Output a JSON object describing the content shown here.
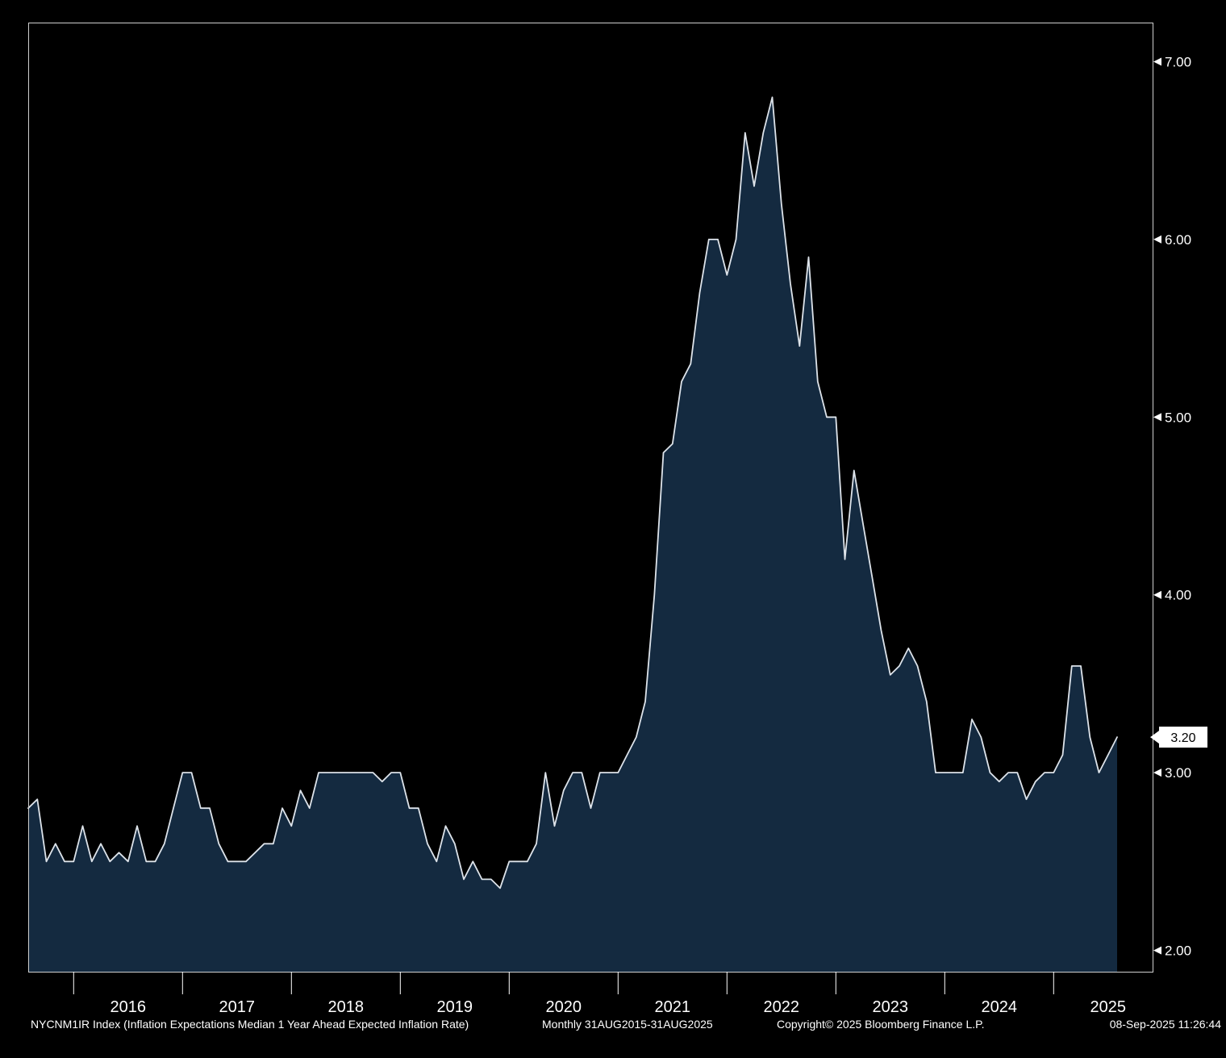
{
  "chart_data": {
    "type": "area",
    "title": "NYCNM1IR Index - Inflation Expectations Median 1 Year Ahead Expected Inflation Rate",
    "frequency": "Monthly",
    "range": "31AUG2015-31AUG2025",
    "x": [
      "2015-08",
      "2015-09",
      "2015-10",
      "2015-11",
      "2015-12",
      "2016-01",
      "2016-02",
      "2016-03",
      "2016-04",
      "2016-05",
      "2016-06",
      "2016-07",
      "2016-08",
      "2016-09",
      "2016-10",
      "2016-11",
      "2016-12",
      "2017-01",
      "2017-02",
      "2017-03",
      "2017-04",
      "2017-05",
      "2017-06",
      "2017-07",
      "2017-08",
      "2017-09",
      "2017-10",
      "2017-11",
      "2017-12",
      "2018-01",
      "2018-02",
      "2018-03",
      "2018-04",
      "2018-05",
      "2018-06",
      "2018-07",
      "2018-08",
      "2018-09",
      "2018-10",
      "2018-11",
      "2018-12",
      "2019-01",
      "2019-02",
      "2019-03",
      "2019-04",
      "2019-05",
      "2019-06",
      "2019-07",
      "2019-08",
      "2019-09",
      "2019-10",
      "2019-11",
      "2019-12",
      "2020-01",
      "2020-02",
      "2020-03",
      "2020-04",
      "2020-05",
      "2020-06",
      "2020-07",
      "2020-08",
      "2020-09",
      "2020-10",
      "2020-11",
      "2020-12",
      "2021-01",
      "2021-02",
      "2021-03",
      "2021-04",
      "2021-05",
      "2021-06",
      "2021-07",
      "2021-08",
      "2021-09",
      "2021-10",
      "2021-11",
      "2021-12",
      "2022-01",
      "2022-02",
      "2022-03",
      "2022-04",
      "2022-05",
      "2022-06",
      "2022-07",
      "2022-08",
      "2022-09",
      "2022-10",
      "2022-11",
      "2022-12",
      "2023-01",
      "2023-02",
      "2023-03",
      "2023-04",
      "2023-05",
      "2023-06",
      "2023-07",
      "2023-08",
      "2023-09",
      "2023-10",
      "2023-11",
      "2023-12",
      "2024-01",
      "2024-02",
      "2024-03",
      "2024-04",
      "2024-05",
      "2024-06",
      "2024-07",
      "2024-08",
      "2024-09",
      "2024-10",
      "2024-11",
      "2024-12",
      "2025-01",
      "2025-02",
      "2025-03",
      "2025-04",
      "2025-05",
      "2025-06",
      "2025-07",
      "2025-08"
    ],
    "values": [
      2.8,
      2.85,
      2.5,
      2.6,
      2.5,
      2.5,
      2.7,
      2.5,
      2.6,
      2.5,
      2.55,
      2.5,
      2.7,
      2.5,
      2.5,
      2.6,
      2.8,
      3.0,
      3.0,
      2.8,
      2.8,
      2.6,
      2.5,
      2.5,
      2.5,
      2.55,
      2.6,
      2.6,
      2.8,
      2.7,
      2.9,
      2.8,
      3.0,
      3.0,
      3.0,
      3.0,
      3.0,
      3.0,
      3.0,
      2.95,
      3.0,
      3.0,
      2.8,
      2.8,
      2.6,
      2.5,
      2.7,
      2.6,
      2.4,
      2.5,
      2.4,
      2.4,
      2.35,
      2.5,
      2.5,
      2.5,
      2.6,
      3.0,
      2.7,
      2.9,
      3.0,
      3.0,
      2.8,
      3.0,
      3.0,
      3.0,
      3.1,
      3.2,
      3.4,
      4.0,
      4.8,
      4.85,
      5.2,
      5.3,
      5.7,
      6.0,
      6.0,
      5.8,
      6.0,
      6.6,
      6.3,
      6.6,
      6.8,
      6.2,
      5.75,
      5.4,
      5.9,
      5.2,
      5.0,
      5.0,
      4.2,
      4.7,
      4.4,
      4.1,
      3.8,
      3.55,
      3.6,
      3.7,
      3.6,
      3.4,
      3.0,
      3.0,
      3.0,
      3.0,
      3.3,
      3.2,
      3.0,
      2.95,
      3.0,
      3.0,
      2.85,
      2.95,
      3.0,
      3.0,
      3.1,
      3.6,
      3.6,
      3.2,
      3.0,
      3.1,
      3.2
    ],
    "ylim": [
      1.88,
      7.22
    ],
    "y_axis": {
      "side": "right",
      "values": [
        2,
        3,
        4,
        5,
        6,
        7
      ],
      "ticks": [
        "2.00",
        "3.00",
        "4.00",
        "5.00",
        "6.00",
        "7.00"
      ]
    },
    "x_axis": {
      "year_labels": [
        "2016",
        "2017",
        "2018",
        "2019",
        "2020",
        "2021",
        "2022",
        "2023",
        "2024",
        "2025"
      ]
    },
    "grid": false,
    "legend_position": "none",
    "last_value": 3.2,
    "last_value_label": "3.20",
    "colors": {
      "background": "#000000",
      "area_fill": "#142a40",
      "line": "#dde3ea",
      "plot_border": "#cfcfcf",
      "axis_text": "#ffffff",
      "tick": "#ffffff",
      "last_value_bg": "#ffffff",
      "last_value_text": "#000000"
    }
  },
  "footer": {
    "security_description": "NYCNM1IR Index (Inflation Expectations Median 1 Year Ahead Expected Inflation Rate)",
    "periodicity_range": "Monthly 31AUG2015-31AUG2025",
    "copyright": "Copyright© 2025 Bloomberg Finance L.P.",
    "timestamp": "08-Sep-2025 11:26:44"
  }
}
